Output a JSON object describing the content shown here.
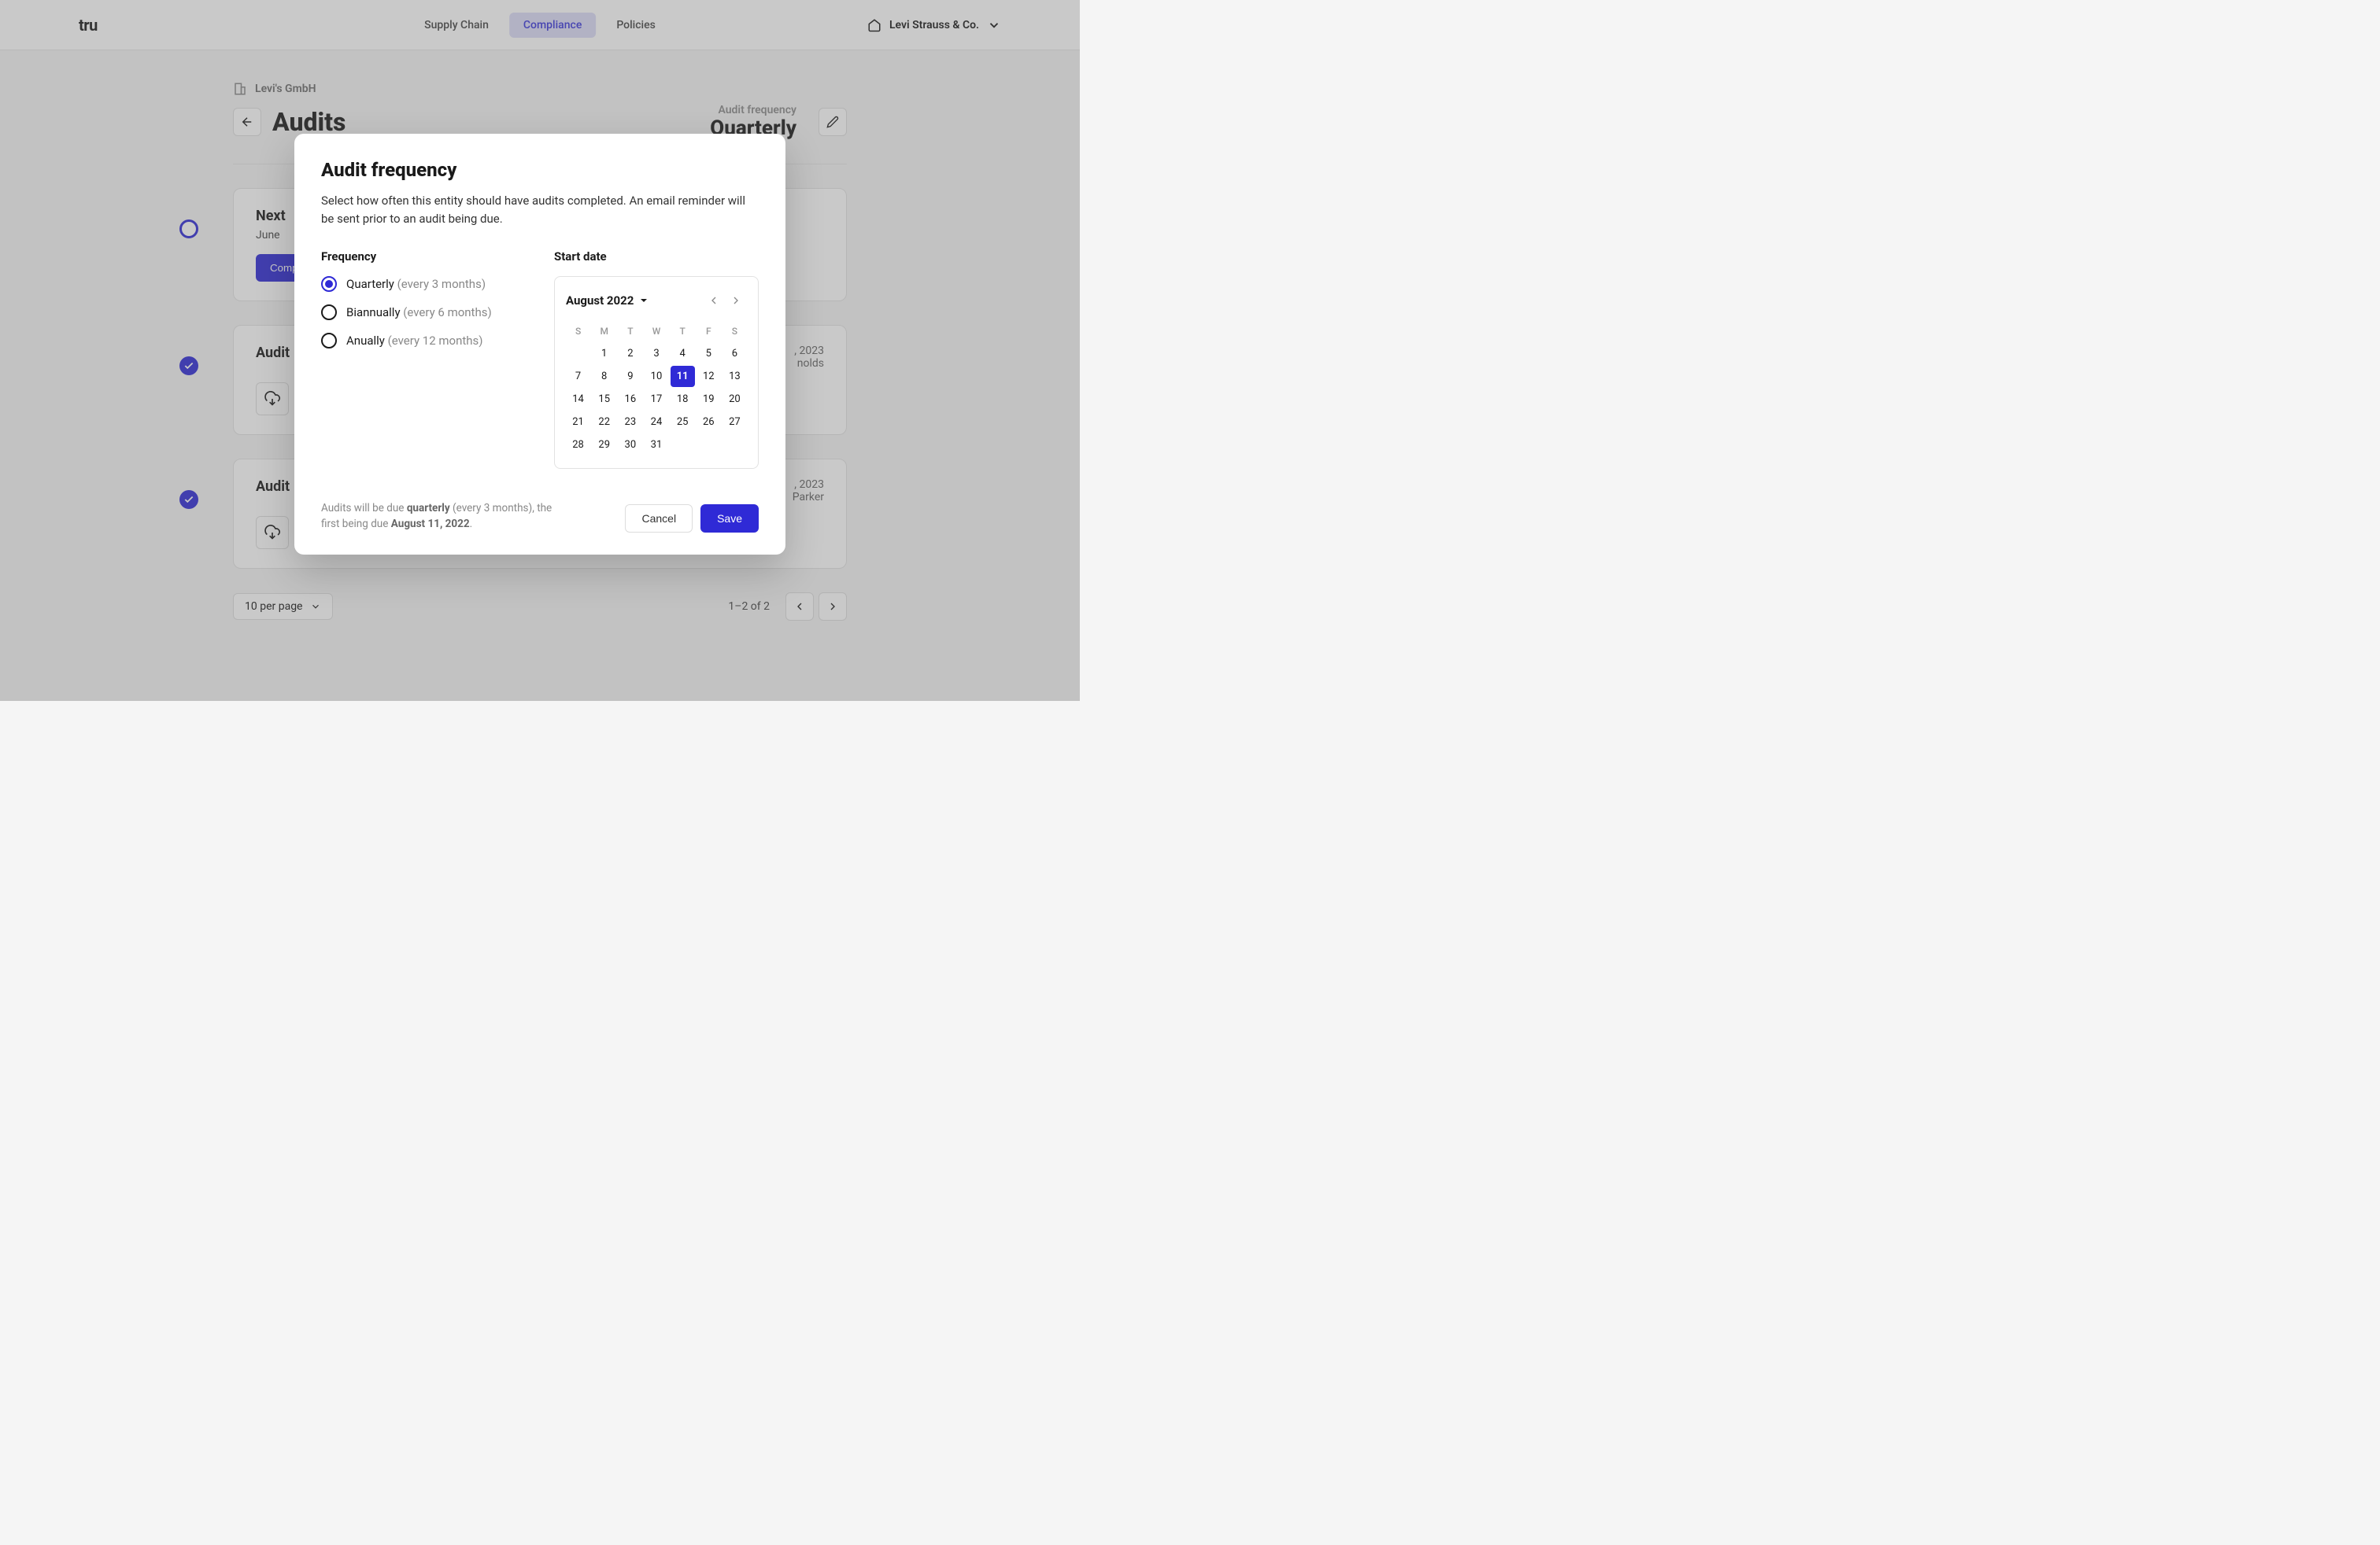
{
  "colors": {
    "primary": "#2f2ad6",
    "nav_active_bg": "#dcdcf8",
    "nav_active_text": "#3a36db",
    "border": "#e2e2e2",
    "muted": "#888"
  },
  "header": {
    "logo": "tru",
    "nav": [
      {
        "label": "Supply Chain",
        "active": false
      },
      {
        "label": "Compliance",
        "active": true
      },
      {
        "label": "Policies",
        "active": false
      }
    ],
    "org_name": "Levi Strauss & Co."
  },
  "page": {
    "breadcrumb": "Levi's GmbH",
    "title": "Audits",
    "frequency_label": "Audit frequency",
    "frequency_value": "Quarterly"
  },
  "cards": {
    "next": {
      "title": "Next",
      "subtitle": "June",
      "button": "Complete"
    },
    "audit1": {
      "title": "Audit",
      "date": ", 2023",
      "by": "nolds"
    },
    "audit2": {
      "title": "Audit",
      "date": ", 2023",
      "by": "Parker"
    }
  },
  "pagination": {
    "per_page": "10 per page",
    "info": "1–2 of 2"
  },
  "modal": {
    "title": "Audit frequency",
    "description": "Select how often this entity should have audits completed. An email reminder will be sent prior to an audit being due.",
    "frequency_label": "Frequency",
    "options": [
      {
        "label": "Quarterly",
        "hint": "(every 3 months)",
        "checked": true
      },
      {
        "label": "Biannually",
        "hint": "(every 6 months)",
        "checked": false
      },
      {
        "label": "Anually",
        "hint": "(every 12 months)",
        "checked": false
      }
    ],
    "start_date_label": "Start date",
    "calendar": {
      "month_label": "August 2022",
      "dow": [
        "S",
        "M",
        "T",
        "W",
        "T",
        "F",
        "S"
      ],
      "first_day_offset": 1,
      "days_in_month": 31,
      "selected_day": 11
    },
    "summary_prefix": "Audits will be due ",
    "summary_freq": "quarterly",
    "summary_mid": " (every 3 months), the first being due ",
    "summary_date": "August 11, 2022",
    "summary_suffix": ".",
    "cancel": "Cancel",
    "save": "Save"
  }
}
